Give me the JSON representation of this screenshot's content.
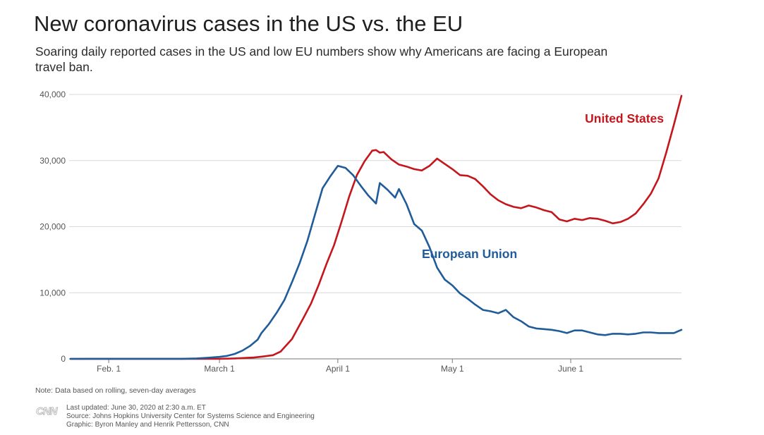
{
  "title": "New coronavirus cases in the US vs. the EU",
  "subtitle": "Soaring daily reported cases in the US and low EU numbers show why Americans are facing a European travel ban.",
  "note": "Note: Data based on rolling, seven-day averages",
  "credits": {
    "updated": "Last updated: June 30, 2020 at 2:30 a.m. ET",
    "source": "Source: Johns Hopkins University Center for Systems Science and Engineering",
    "graphic": "Graphic: Byron Manley and Henrik Pettersson, CNN"
  },
  "logo": "CNN",
  "colors": {
    "us": "#c4161c",
    "eu": "#1f5c99",
    "grid": "#d9d9d9",
    "axis": "#777777",
    "tick_text": "#555555"
  },
  "chart_data": {
    "type": "line",
    "xlabel": "",
    "ylabel": "",
    "x_start": "2020-01-22",
    "x_end": "2020-06-30",
    "ylim": [
      0,
      40000
    ],
    "y_ticks": [
      {
        "value": 0,
        "label": "0"
      },
      {
        "value": 10000,
        "label": "10,000"
      },
      {
        "value": 20000,
        "label": "20,000"
      },
      {
        "value": 30000,
        "label": "30,000"
      },
      {
        "value": 40000,
        "label": "40,000"
      }
    ],
    "x_ticks": [
      {
        "date": "2020-02-01",
        "label": "Feb. 1"
      },
      {
        "date": "2020-03-01",
        "label": "March 1"
      },
      {
        "date": "2020-04-01",
        "label": "April 1"
      },
      {
        "date": "2020-05-01",
        "label": "May 1"
      },
      {
        "date": "2020-06-01",
        "label": "June 1"
      }
    ],
    "grid": true,
    "series": [
      {
        "name": "United States",
        "color": "#c4161c",
        "points": [
          [
            "2020-01-22",
            0
          ],
          [
            "2020-02-20",
            0
          ],
          [
            "2020-03-01",
            5
          ],
          [
            "2020-03-05",
            60
          ],
          [
            "2020-03-10",
            200
          ],
          [
            "2020-03-12",
            330
          ],
          [
            "2020-03-15",
            560
          ],
          [
            "2020-03-17",
            1100
          ],
          [
            "2020-03-20",
            3000
          ],
          [
            "2020-03-23",
            6200
          ],
          [
            "2020-03-25",
            8400
          ],
          [
            "2020-03-27",
            11200
          ],
          [
            "2020-03-29",
            14300
          ],
          [
            "2020-03-31",
            17200
          ],
          [
            "2020-04-02",
            20800
          ],
          [
            "2020-04-04",
            24600
          ],
          [
            "2020-04-06",
            27800
          ],
          [
            "2020-04-08",
            29900
          ],
          [
            "2020-04-10",
            31500
          ],
          [
            "2020-04-11",
            31600
          ],
          [
            "2020-04-12",
            31200
          ],
          [
            "2020-04-13",
            31300
          ],
          [
            "2020-04-15",
            30200
          ],
          [
            "2020-04-17",
            29400
          ],
          [
            "2020-04-19",
            29100
          ],
          [
            "2020-04-21",
            28700
          ],
          [
            "2020-04-23",
            28500
          ],
          [
            "2020-04-25",
            29200
          ],
          [
            "2020-04-27",
            30300
          ],
          [
            "2020-04-29",
            29500
          ],
          [
            "2020-05-01",
            28700
          ],
          [
            "2020-05-03",
            27800
          ],
          [
            "2020-05-05",
            27700
          ],
          [
            "2020-05-07",
            27200
          ],
          [
            "2020-05-09",
            26100
          ],
          [
            "2020-05-11",
            24900
          ],
          [
            "2020-05-13",
            24000
          ],
          [
            "2020-05-15",
            23400
          ],
          [
            "2020-05-17",
            23000
          ],
          [
            "2020-05-19",
            22800
          ],
          [
            "2020-05-21",
            23200
          ],
          [
            "2020-05-23",
            22900
          ],
          [
            "2020-05-25",
            22500
          ],
          [
            "2020-05-27",
            22200
          ],
          [
            "2020-05-29",
            21100
          ],
          [
            "2020-05-31",
            20800
          ],
          [
            "2020-06-02",
            21200
          ],
          [
            "2020-06-04",
            21000
          ],
          [
            "2020-06-06",
            21300
          ],
          [
            "2020-06-08",
            21200
          ],
          [
            "2020-06-10",
            20900
          ],
          [
            "2020-06-12",
            20500
          ],
          [
            "2020-06-14",
            20700
          ],
          [
            "2020-06-16",
            21200
          ],
          [
            "2020-06-18",
            22000
          ],
          [
            "2020-06-20",
            23400
          ],
          [
            "2020-06-22",
            25000
          ],
          [
            "2020-06-24",
            27300
          ],
          [
            "2020-06-26",
            31200
          ],
          [
            "2020-06-28",
            35400
          ],
          [
            "2020-06-30",
            39800
          ]
        ]
      },
      {
        "name": "European Union",
        "color": "#1f5c99",
        "points": [
          [
            "2020-01-22",
            0
          ],
          [
            "2020-02-20",
            10
          ],
          [
            "2020-02-24",
            60
          ],
          [
            "2020-02-27",
            170
          ],
          [
            "2020-03-01",
            300
          ],
          [
            "2020-03-03",
            450
          ],
          [
            "2020-03-05",
            750
          ],
          [
            "2020-03-07",
            1250
          ],
          [
            "2020-03-09",
            1950
          ],
          [
            "2020-03-11",
            2900
          ],
          [
            "2020-03-12",
            3900
          ],
          [
            "2020-03-14",
            5300
          ],
          [
            "2020-03-16",
            7000
          ],
          [
            "2020-03-18",
            8900
          ],
          [
            "2020-03-20",
            11600
          ],
          [
            "2020-03-22",
            14500
          ],
          [
            "2020-03-24",
            17800
          ],
          [
            "2020-03-26",
            21800
          ],
          [
            "2020-03-28",
            25800
          ],
          [
            "2020-03-30",
            27600
          ],
          [
            "2020-04-01",
            29200
          ],
          [
            "2020-04-03",
            28900
          ],
          [
            "2020-04-05",
            27800
          ],
          [
            "2020-04-07",
            26200
          ],
          [
            "2020-04-09",
            24700
          ],
          [
            "2020-04-11",
            23500
          ],
          [
            "2020-04-12",
            26600
          ],
          [
            "2020-04-14",
            25600
          ],
          [
            "2020-04-16",
            24400
          ],
          [
            "2020-04-17",
            25700
          ],
          [
            "2020-04-19",
            23400
          ],
          [
            "2020-04-21",
            20400
          ],
          [
            "2020-04-23",
            19400
          ],
          [
            "2020-04-25",
            16900
          ],
          [
            "2020-04-27",
            13800
          ],
          [
            "2020-04-29",
            12000
          ],
          [
            "2020-05-01",
            11100
          ],
          [
            "2020-05-03",
            9900
          ],
          [
            "2020-05-05",
            9100
          ],
          [
            "2020-05-07",
            8200
          ],
          [
            "2020-05-09",
            7400
          ],
          [
            "2020-05-11",
            7200
          ],
          [
            "2020-05-13",
            6900
          ],
          [
            "2020-05-15",
            7400
          ],
          [
            "2020-05-17",
            6300
          ],
          [
            "2020-05-19",
            5700
          ],
          [
            "2020-05-21",
            4900
          ],
          [
            "2020-05-23",
            4600
          ],
          [
            "2020-05-25",
            4500
          ],
          [
            "2020-05-27",
            4400
          ],
          [
            "2020-05-29",
            4200
          ],
          [
            "2020-05-31",
            3900
          ],
          [
            "2020-06-02",
            4300
          ],
          [
            "2020-06-04",
            4300
          ],
          [
            "2020-06-06",
            4000
          ],
          [
            "2020-06-08",
            3700
          ],
          [
            "2020-06-10",
            3600
          ],
          [
            "2020-06-12",
            3800
          ],
          [
            "2020-06-14",
            3800
          ],
          [
            "2020-06-16",
            3700
          ],
          [
            "2020-06-18",
            3800
          ],
          [
            "2020-06-20",
            4000
          ],
          [
            "2020-06-22",
            4000
          ],
          [
            "2020-06-24",
            3900
          ],
          [
            "2020-06-26",
            3900
          ],
          [
            "2020-06-28",
            3900
          ],
          [
            "2020-06-30",
            4400
          ]
        ]
      }
    ]
  }
}
